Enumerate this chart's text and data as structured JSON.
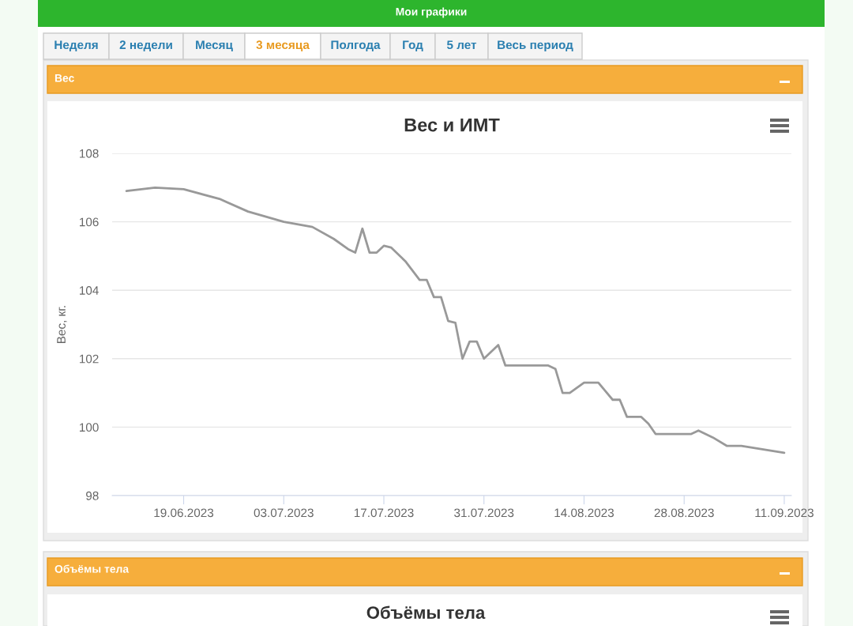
{
  "chart_data": {
    "type": "line",
    "title": "Вес и ИМТ",
    "ylabel": "Вес, кг.",
    "annotations": [
      "Мои графики",
      "Неделя",
      "2 недели",
      "Месяц",
      "3 месяца",
      "Полгода",
      "Год",
      "5 лет",
      "Весь период",
      "Вес",
      "Объёмы тела",
      "Объёмы тела"
    ],
    "x": [
      "2023-06-11",
      "2023-06-15",
      "2023-06-19",
      "2023-06-24",
      "2023-06-28",
      "2023-07-03",
      "2023-07-07",
      "2023-07-10",
      "2023-07-12",
      "2023-07-13",
      "2023-07-14",
      "2023-07-15",
      "2023-07-16",
      "2023-07-17",
      "2023-07-18",
      "2023-07-20",
      "2023-07-22",
      "2023-07-23",
      "2023-07-24",
      "2023-07-25",
      "2023-07-26",
      "2023-07-27",
      "2023-07-28",
      "2023-07-29",
      "2023-07-30",
      "2023-07-31",
      "2023-08-02",
      "2023-08-03",
      "2023-08-09",
      "2023-08-10",
      "2023-08-11",
      "2023-08-12",
      "2023-08-14",
      "2023-08-16",
      "2023-08-18",
      "2023-08-19",
      "2023-08-20",
      "2023-08-22",
      "2023-08-23",
      "2023-08-24",
      "2023-08-29",
      "2023-08-30",
      "2023-09-01",
      "2023-09-03",
      "2023-09-05",
      "2023-09-11"
    ],
    "series": [
      {
        "color": "#999999",
        "values": [
          106.9,
          107.0,
          106.95,
          106.67,
          106.3,
          106.0,
          105.85,
          105.5,
          105.2,
          105.1,
          105.8,
          105.1,
          105.1,
          105.3,
          105.25,
          104.85,
          104.3,
          104.3,
          103.8,
          103.8,
          103.1,
          103.05,
          102.0,
          102.5,
          102.5,
          102.0,
          102.4,
          101.8,
          101.8,
          101.7,
          101.0,
          101.0,
          101.3,
          101.3,
          100.8,
          100.8,
          100.3,
          100.3,
          100.1,
          99.8,
          99.8,
          99.9,
          99.7,
          99.45,
          99.45,
          99.25
        ]
      }
    ],
    "xlim": [
      "2023-06-09",
      "2023-09-12"
    ],
    "xticks": [
      {
        "value": "2023-06-19",
        "label": "19.06.2023"
      },
      {
        "value": "2023-07-03",
        "label": "03.07.2023"
      },
      {
        "value": "2023-07-17",
        "label": "17.07.2023"
      },
      {
        "value": "2023-07-31",
        "label": "31.07.2023"
      },
      {
        "value": "2023-08-14",
        "label": "14.08.2023"
      },
      {
        "value": "2023-08-28",
        "label": "28.08.2023"
      },
      {
        "value": "2023-09-11",
        "label": "11.09.2023"
      }
    ],
    "ylim": [
      98,
      108
    ],
    "yticks": [
      98,
      100,
      102,
      104,
      106,
      108
    ],
    "grid": "y",
    "legend": false,
    "marker": "none",
    "line_style": "solid"
  }
}
